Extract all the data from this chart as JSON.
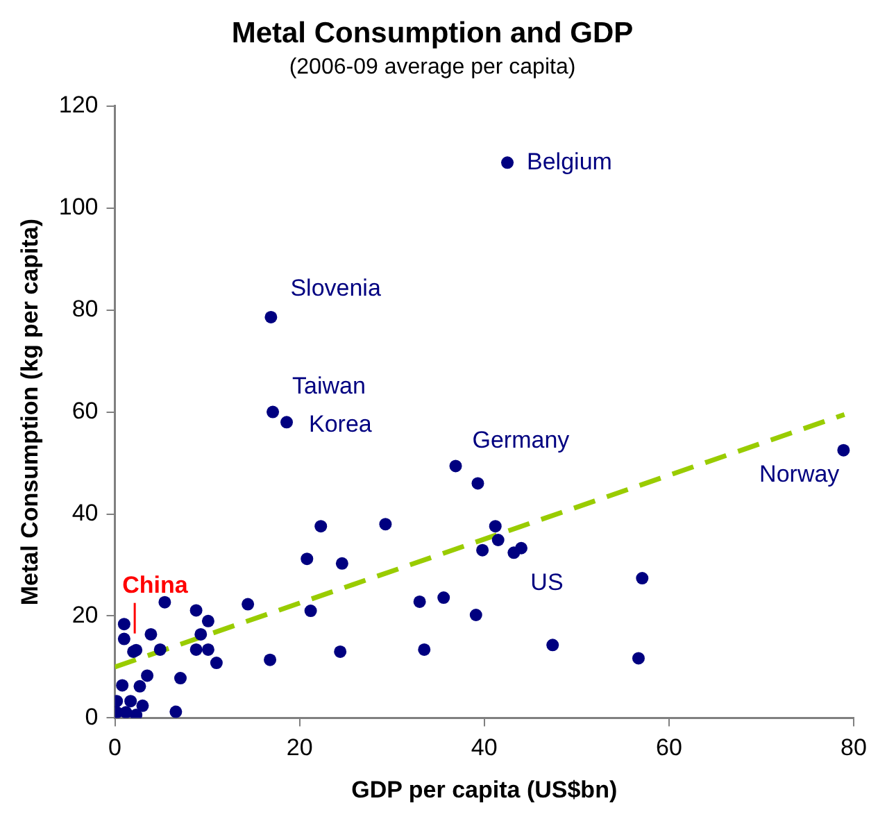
{
  "chart_data": {
    "type": "scatter",
    "title": "Metal Consumption and GDP",
    "subtitle": "(2006-09 average per capita)",
    "xlabel": "GDP per capita (US$bn)",
    "ylabel": "Metal Consumption (kg per capita)",
    "xlim": [
      0,
      80
    ],
    "xticks": [
      0,
      20,
      40,
      60,
      80
    ],
    "ylim": [
      0,
      120
    ],
    "yticks": [
      0,
      20,
      40,
      60,
      80,
      100,
      120
    ],
    "grid": false,
    "legend": false,
    "marker": "circle",
    "series": [
      {
        "color": "#000080",
        "x": [
          42.5,
          16.9,
          17.1,
          18.6,
          36.9,
          78.9,
          43.2,
          2.3,
          22.3,
          20.8,
          24.6,
          5.4,
          14.4,
          8.8,
          21.2,
          1.0,
          10.1,
          1.0,
          3.9,
          9.3,
          2.0,
          4.9,
          8.8,
          10.1,
          11.0,
          16.8,
          24.4,
          3.5,
          7.1,
          0.8,
          2.7,
          0.2,
          1.7,
          3.0,
          0.2,
          1.2,
          2.3,
          6.6,
          39.3,
          29.3,
          41.2,
          41.5,
          39.8,
          44.0,
          33.0,
          35.6,
          39.1,
          33.5,
          47.4,
          57.1,
          56.7
        ],
        "values": [
          108.9,
          78.6,
          60.0,
          58.0,
          49.4,
          52.5,
          32.4,
          13.3,
          37.6,
          31.2,
          30.3,
          22.7,
          22.3,
          21.1,
          21.0,
          18.4,
          19.0,
          15.5,
          16.4,
          16.4,
          13.0,
          13.4,
          13.4,
          13.4,
          10.8,
          11.4,
          13.0,
          8.3,
          7.8,
          6.4,
          6.2,
          3.3,
          3.3,
          2.4,
          1.1,
          1.1,
          0.6,
          1.2,
          46.0,
          38.0,
          37.6,
          34.9,
          32.9,
          33.3,
          22.8,
          23.6,
          20.2,
          13.4,
          14.3,
          27.4,
          11.7
        ]
      },
      {
        "type": "line",
        "color": "#99cc00",
        "line_style": "dashed",
        "marker": "none",
        "x": [
          0,
          79
        ],
        "values": [
          10,
          59.5
        ]
      }
    ],
    "annotations": [
      {
        "text": "Belgium",
        "x": 42.5,
        "y": 108.9
      },
      {
        "text": "Slovenia",
        "x": 16.9,
        "y": 78.6
      },
      {
        "text": "Taiwan",
        "x": 17.1,
        "y": 60.0
      },
      {
        "text": "Korea",
        "x": 18.6,
        "y": 58.0
      },
      {
        "text": "Germany",
        "x": 36.9,
        "y": 49.4
      },
      {
        "text": "Norway",
        "x": 78.9,
        "y": 52.5
      },
      {
        "text": "US",
        "x": 43.2,
        "y": 32.4
      },
      {
        "text": "China",
        "x": 2.3,
        "y": 13.3
      }
    ]
  }
}
